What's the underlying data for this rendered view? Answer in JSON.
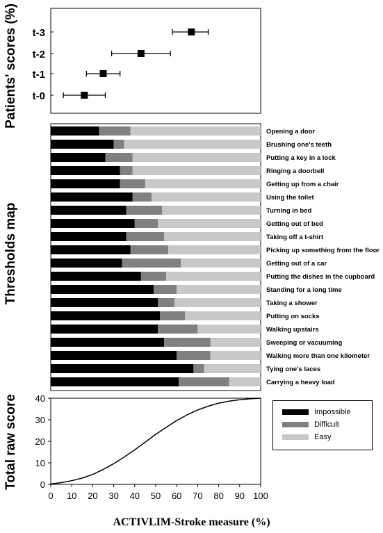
{
  "y_titles": {
    "top": "Patients' scores (%)",
    "middle": "Thresholds map",
    "bottom": "Total raw score"
  },
  "x_title": "ACTIVLIM-Stroke measure (%)",
  "colors": {
    "impossible": "#000000",
    "difficult": "#808080",
    "easy": "#c8c8c8"
  },
  "chart_data": [
    {
      "type": "scatter",
      "title": "",
      "ylabel": "Patients' scores (%)",
      "xlim": [
        0,
        100
      ],
      "categories": [
        "t-3",
        "t-2",
        "t-1",
        "t-0"
      ],
      "points": [
        {
          "label": "t-3",
          "x": 67,
          "xerr_low": 58,
          "xerr_high": 75
        },
        {
          "label": "t-2",
          "x": 43,
          "xerr_low": 29,
          "xerr_high": 57
        },
        {
          "label": "t-1",
          "x": 25,
          "xerr_low": 17,
          "xerr_high": 33
        },
        {
          "label": "t-0",
          "x": 16,
          "xerr_low": 6,
          "xerr_high": 26
        }
      ]
    },
    {
      "type": "bar",
      "orientation": "horizontal-stacked",
      "ylabel": "Thresholds map",
      "xlim": [
        0,
        100
      ],
      "legend": [
        "Impossible",
        "Difficult",
        "Easy"
      ],
      "legend_position": "right of bottom panel",
      "categories": [
        "Opening a door",
        "Brushing one's teeth",
        "Putting a key in a lock",
        "Ringing a doorbell",
        "Getting up from a chair",
        "Using the toilet",
        "Turning in bed",
        "Getting out of bed",
        "Taking off a t-shirt",
        "Picking up something from the floor",
        "Getting out of a car",
        "Putting the dishes in the cupboard",
        "Standing for a long time",
        "Taking a shower",
        "Putting on socks",
        "Walking upstairs",
        "Sweeping or vacuuming",
        "Walking more than one kilometer",
        "Tying one's laces",
        "Carrying a heavy load"
      ],
      "series": [
        {
          "name": "Impossible",
          "values": [
            23,
            30,
            26,
            33,
            33,
            39,
            36,
            40,
            36,
            38,
            34,
            43,
            49,
            51,
            52,
            51,
            54,
            60,
            68,
            61
          ]
        },
        {
          "name": "Difficult",
          "values": [
            15,
            5,
            13,
            6,
            12,
            9,
            17,
            11,
            18,
            18,
            28,
            12,
            11,
            8,
            12,
            19,
            22,
            16,
            5,
            24
          ]
        },
        {
          "name": "Easy",
          "values": [
            62,
            65,
            61,
            61,
            55,
            52,
            47,
            49,
            46,
            44,
            38,
            45,
            40,
            41,
            36,
            30,
            24,
            24,
            27,
            15
          ]
        }
      ]
    },
    {
      "type": "line",
      "ylabel": "Total raw score",
      "xlabel": "ACTIVLIM-Stroke measure (%)",
      "xlim": [
        0,
        100
      ],
      "ylim": [
        0,
        40
      ],
      "xticks": [
        0,
        10,
        20,
        30,
        40,
        50,
        60,
        70,
        80,
        90,
        100
      ],
      "yticks": [
        0,
        10,
        20,
        30,
        40
      ],
      "x": [
        0,
        5,
        10,
        15,
        20,
        25,
        30,
        35,
        40,
        45,
        50,
        55,
        60,
        65,
        70,
        75,
        80,
        85,
        90,
        95,
        100
      ],
      "y": [
        0.2,
        0.8,
        1.7,
        2.9,
        4.6,
        6.9,
        9.6,
        12.7,
        16.0,
        19.6,
        23.2,
        26.5,
        29.6,
        32.3,
        34.5,
        36.3,
        37.7,
        38.6,
        39.3,
        39.7,
        40
      ]
    }
  ]
}
